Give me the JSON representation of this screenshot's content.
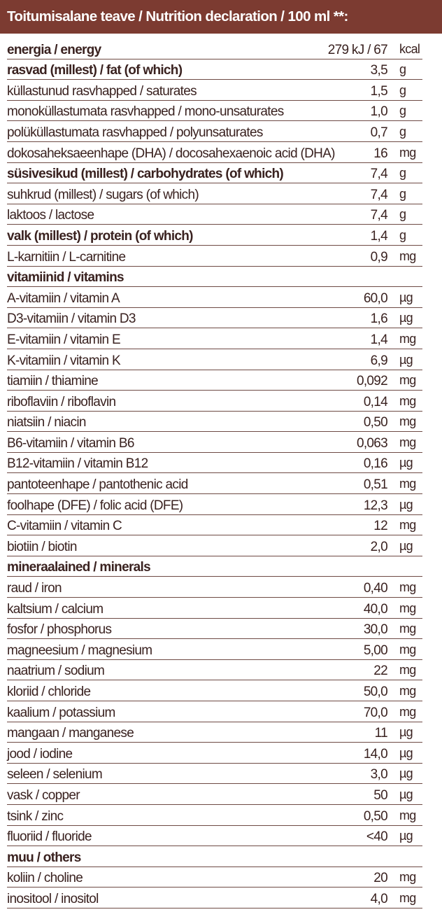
{
  "header": {
    "title": "Toitumisalane teave / Nutrition declaration / 100 ml **:"
  },
  "rows": [
    {
      "name": "energia / energy",
      "value": "279 kJ / 67",
      "unit": "kcal",
      "bold": true
    },
    {
      "name": "rasvad (millest) / fat (of which)",
      "value": "3,5",
      "unit": "g",
      "bold": true
    },
    {
      "name": "küllastunud rasvhapped / saturates",
      "value": "1,5",
      "unit": "g",
      "bold": false
    },
    {
      "name": "monoküllastumata rasvhapped / mono-unsaturates",
      "value": "1,0",
      "unit": "g",
      "bold": false
    },
    {
      "name": "polüküllastumata rasvhapped / polyunsaturates",
      "value": "0,7",
      "unit": "g",
      "bold": false
    },
    {
      "name": "dokosaheksaeenhape (DHA) / docosahexaenoic acid (DHA)",
      "value": "16",
      "unit": "mg",
      "bold": false
    },
    {
      "name": "süsivesikud (millest) / carbohydrates (of which)",
      "value": "7,4",
      "unit": "g",
      "bold": true
    },
    {
      "name": "suhkrud (millest) / sugars (of which)",
      "value": "7,4",
      "unit": "g",
      "bold": false
    },
    {
      "name": "laktoos / lactose",
      "value": "7,4",
      "unit": "g",
      "bold": false
    },
    {
      "name": "valk (millest) / protein (of which)",
      "value": "1,4",
      "unit": "g",
      "bold": true
    },
    {
      "name": "L-karnitiin / L-carnitine",
      "value": "0,9",
      "unit": "mg",
      "bold": false
    },
    {
      "name": "vitamiinid / vitamins",
      "value": "",
      "unit": "",
      "bold": true
    },
    {
      "name": "A-vitamiin / vitamin A",
      "value": "60,0",
      "unit": "µg",
      "bold": false
    },
    {
      "name": "D3-vitamiin / vitamin D3",
      "value": "1,6",
      "unit": "µg",
      "bold": false
    },
    {
      "name": "E-vitamiin / vitamin E",
      "value": "1,4",
      "unit": "mg",
      "bold": false
    },
    {
      "name": "K-vitamiin / vitamin K",
      "value": "6,9",
      "unit": "µg",
      "bold": false
    },
    {
      "name": "tiamiin / thiamine",
      "value": "0,092",
      "unit": "mg",
      "bold": false
    },
    {
      "name": "riboflaviin / riboflavin",
      "value": "0,14",
      "unit": "mg",
      "bold": false
    },
    {
      "name": "niatsiin / niacin",
      "value": "0,50",
      "unit": "mg",
      "bold": false
    },
    {
      "name": "B6-vitamiin / vitamin B6",
      "value": "0,063",
      "unit": "mg",
      "bold": false
    },
    {
      "name": "B12-vitamiin / vitamin B12",
      "value": "0,16",
      "unit": "µg",
      "bold": false
    },
    {
      "name": "pantoteenhape / pantothenic acid",
      "value": "0,51",
      "unit": "mg",
      "bold": false
    },
    {
      "name": "foolhape (DFE) / folic acid (DFE)",
      "value": "12,3",
      "unit": "µg",
      "bold": false
    },
    {
      "name": "C-vitamiin / vitamin C",
      "value": "12",
      "unit": "mg",
      "bold": false
    },
    {
      "name": "biotiin / biotin",
      "value": "2,0",
      "unit": "µg",
      "bold": false
    },
    {
      "name": "mineraalained / minerals",
      "value": "",
      "unit": "",
      "bold": true
    },
    {
      "name": "raud / iron",
      "value": "0,40",
      "unit": "mg",
      "bold": false
    },
    {
      "name": "kaltsium / calcium",
      "value": "40,0",
      "unit": "mg",
      "bold": false
    },
    {
      "name": "fosfor / phosphorus",
      "value": "30,0",
      "unit": "mg",
      "bold": false
    },
    {
      "name": "magneesium / magnesium",
      "value": "5,00",
      "unit": "mg",
      "bold": false
    },
    {
      "name": "naatrium / sodium",
      "value": "22",
      "unit": "mg",
      "bold": false
    },
    {
      "name": "kloriid / chloride",
      "value": "50,0",
      "unit": "mg",
      "bold": false
    },
    {
      "name": "kaalium / potassium",
      "value": "70,0",
      "unit": "mg",
      "bold": false
    },
    {
      "name": "mangaan / manganese",
      "value": "11",
      "unit": "µg",
      "bold": false
    },
    {
      "name": "jood / iodine",
      "value": "14,0",
      "unit": "µg",
      "bold": false
    },
    {
      "name": "seleen / selenium",
      "value": "3,0",
      "unit": "µg",
      "bold": false
    },
    {
      "name": "vask / copper",
      "value": "50",
      "unit": "µg",
      "bold": false
    },
    {
      "name": "tsink / zinc",
      "value": "0,50",
      "unit": "mg",
      "bold": false
    },
    {
      "name": "fluoriid /  fluoride",
      "value": "<40",
      "unit": "µg",
      "bold": false
    },
    {
      "name": "muu / others",
      "value": "",
      "unit": "",
      "bold": true
    },
    {
      "name": "koliin / choline",
      "value": "20",
      "unit": "mg",
      "bold": false
    },
    {
      "name": "inositool / inositol",
      "value": "4,0",
      "unit": "mg",
      "bold": false
    }
  ],
  "colors": {
    "header_bg": "#7c3b31",
    "header_text": "#ffffff",
    "text": "#3a2220",
    "rule": "#6e4a44"
  }
}
